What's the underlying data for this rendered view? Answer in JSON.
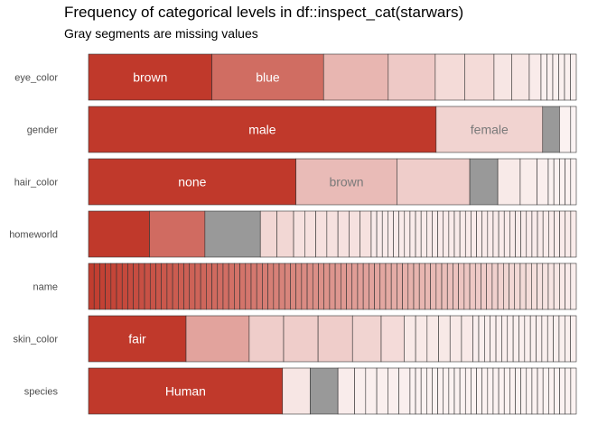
{
  "chart_data": {
    "type": "stacked-bar",
    "title": "Frequency of categorical levels in df::inspect_cat(starwars)",
    "subtitle": "Gray segments are missing values",
    "colors": {
      "level": "#c0392b",
      "missing": "#999999",
      "label_light": "#ffffff",
      "label_dark": "#7a7a7a",
      "border": "#333333",
      "axis_text": "#4d4d4d"
    },
    "rows": [
      {
        "name": "eye_color",
        "segments": [
          {
            "value": 21,
            "label": "brown",
            "na": false
          },
          {
            "value": 19,
            "label": "blue",
            "na": false
          },
          {
            "value": 11,
            "label": "",
            "na": false
          },
          {
            "value": 8,
            "label": "",
            "na": false
          },
          {
            "value": 5,
            "label": "",
            "na": false
          },
          {
            "value": 5,
            "label": "",
            "na": false
          },
          {
            "value": 3,
            "label": "",
            "na": false
          },
          {
            "value": 3,
            "label": "",
            "na": false
          },
          {
            "value": 2,
            "label": "",
            "na": false
          },
          {
            "value": 1,
            "label": "",
            "na": false
          },
          {
            "value": 1,
            "label": "",
            "na": false
          },
          {
            "value": 1,
            "label": "",
            "na": false
          },
          {
            "value": 1,
            "label": "",
            "na": false
          },
          {
            "value": 1,
            "label": "",
            "na": false
          },
          {
            "value": 1,
            "label": "",
            "na": false
          }
        ]
      },
      {
        "name": "gender",
        "segments": [
          {
            "value": 62,
            "label": "male",
            "na": false
          },
          {
            "value": 19,
            "label": "female",
            "na": false
          },
          {
            "value": 3,
            "label": "",
            "na": true
          },
          {
            "value": 2,
            "label": "",
            "na": false
          },
          {
            "value": 1,
            "label": "",
            "na": false
          }
        ]
      },
      {
        "name": "hair_color",
        "segments": [
          {
            "value": 37,
            "label": "none",
            "na": false
          },
          {
            "value": 18,
            "label": "brown",
            "na": false
          },
          {
            "value": 13,
            "label": "",
            "na": false
          },
          {
            "value": 5,
            "label": "",
            "na": true
          },
          {
            "value": 4,
            "label": "",
            "na": false
          },
          {
            "value": 3,
            "label": "",
            "na": false
          },
          {
            "value": 2,
            "label": "",
            "na": false
          },
          {
            "value": 1,
            "label": "",
            "na": false
          },
          {
            "value": 1,
            "label": "",
            "na": false
          },
          {
            "value": 1,
            "label": "",
            "na": false
          },
          {
            "value": 1,
            "label": "",
            "na": false
          },
          {
            "value": 1,
            "label": "",
            "na": false
          }
        ]
      },
      {
        "name": "homeworld",
        "segments": [
          {
            "value": 11,
            "label": "",
            "na": false
          },
          {
            "value": 10,
            "label": "",
            "na": false
          },
          {
            "value": 10,
            "label": "",
            "na": true
          },
          {
            "value": 3,
            "label": "",
            "na": false
          },
          {
            "value": 3,
            "label": "",
            "na": false
          },
          {
            "value": 2,
            "label": "",
            "na": false
          },
          {
            "value": 2,
            "label": "",
            "na": false
          },
          {
            "value": 2,
            "label": "",
            "na": false
          },
          {
            "value": 2,
            "label": "",
            "na": false
          },
          {
            "value": 2,
            "label": "",
            "na": false
          },
          {
            "value": 2,
            "label": "",
            "na": false
          },
          {
            "value": 2,
            "label": "",
            "na": false
          },
          {
            "value": 1,
            "label": "",
            "na": false
          },
          {
            "value": 1,
            "label": "",
            "na": false
          },
          {
            "value": 1,
            "label": "",
            "na": false
          },
          {
            "value": 1,
            "label": "",
            "na": false
          },
          {
            "value": 1,
            "label": "",
            "na": false
          },
          {
            "value": 1,
            "label": "",
            "na": false
          },
          {
            "value": 1,
            "label": "",
            "na": false
          },
          {
            "value": 1,
            "label": "",
            "na": false
          },
          {
            "value": 1,
            "label": "",
            "na": false
          },
          {
            "value": 1,
            "label": "",
            "na": false
          },
          {
            "value": 1,
            "label": "",
            "na": false
          },
          {
            "value": 1,
            "label": "",
            "na": false
          },
          {
            "value": 1,
            "label": "",
            "na": false
          },
          {
            "value": 1,
            "label": "",
            "na": false
          },
          {
            "value": 1,
            "label": "",
            "na": false
          },
          {
            "value": 1,
            "label": "",
            "na": false
          },
          {
            "value": 1,
            "label": "",
            "na": false
          },
          {
            "value": 1,
            "label": "",
            "na": false
          },
          {
            "value": 1,
            "label": "",
            "na": false
          },
          {
            "value": 1,
            "label": "",
            "na": false
          },
          {
            "value": 1,
            "label": "",
            "na": false
          },
          {
            "value": 1,
            "label": "",
            "na": false
          },
          {
            "value": 1,
            "label": "",
            "na": false
          },
          {
            "value": 1,
            "label": "",
            "na": false
          },
          {
            "value": 1,
            "label": "",
            "na": false
          },
          {
            "value": 1,
            "label": "",
            "na": false
          },
          {
            "value": 1,
            "label": "",
            "na": false
          },
          {
            "value": 1,
            "label": "",
            "na": false
          },
          {
            "value": 1,
            "label": "",
            "na": false
          },
          {
            "value": 1,
            "label": "",
            "na": false
          },
          {
            "value": 1,
            "label": "",
            "na": false
          },
          {
            "value": 1,
            "label": "",
            "na": false
          },
          {
            "value": 1,
            "label": "",
            "na": false
          },
          {
            "value": 1,
            "label": "",
            "na": false
          },
          {
            "value": 1,
            "label": "",
            "na": false
          },
          {
            "value": 1,
            "label": "",
            "na": false
          },
          {
            "value": 1,
            "label": "",
            "na": false
          }
        ]
      },
      {
        "name": "name",
        "uniform_count": 87
      },
      {
        "name": "skin_color",
        "segments": [
          {
            "value": 17,
            "label": "fair",
            "na": false
          },
          {
            "value": 11,
            "label": "",
            "na": false
          },
          {
            "value": 6,
            "label": "",
            "na": false
          },
          {
            "value": 6,
            "label": "",
            "na": false
          },
          {
            "value": 6,
            "label": "",
            "na": false
          },
          {
            "value": 5,
            "label": "",
            "na": false
          },
          {
            "value": 4,
            "label": "",
            "na": false
          },
          {
            "value": 2,
            "label": "",
            "na": false
          },
          {
            "value": 2,
            "label": "",
            "na": false
          },
          {
            "value": 2,
            "label": "",
            "na": false
          },
          {
            "value": 2,
            "label": "",
            "na": false
          },
          {
            "value": 2,
            "label": "",
            "na": false
          },
          {
            "value": 2,
            "label": "",
            "na": false
          },
          {
            "value": 1,
            "label": "",
            "na": false
          },
          {
            "value": 1,
            "label": "",
            "na": false
          },
          {
            "value": 1,
            "label": "",
            "na": false
          },
          {
            "value": 1,
            "label": "",
            "na": false
          },
          {
            "value": 1,
            "label": "",
            "na": false
          },
          {
            "value": 1,
            "label": "",
            "na": false
          },
          {
            "value": 1,
            "label": "",
            "na": false
          },
          {
            "value": 1,
            "label": "",
            "na": false
          },
          {
            "value": 1,
            "label": "",
            "na": false
          },
          {
            "value": 1,
            "label": "",
            "na": false
          },
          {
            "value": 1,
            "label": "",
            "na": false
          },
          {
            "value": 1,
            "label": "",
            "na": false
          },
          {
            "value": 1,
            "label": "",
            "na": false
          },
          {
            "value": 1,
            "label": "",
            "na": false
          },
          {
            "value": 1,
            "label": "",
            "na": false
          },
          {
            "value": 1,
            "label": "",
            "na": false
          },
          {
            "value": 1,
            "label": "",
            "na": false
          },
          {
            "value": 1,
            "label": "",
            "na": false
          }
        ]
      },
      {
        "name": "species",
        "segments": [
          {
            "value": 35,
            "label": "Human",
            "na": false
          },
          {
            "value": 5,
            "label": "",
            "na": false
          },
          {
            "value": 5,
            "label": "",
            "na": true
          },
          {
            "value": 3,
            "label": "",
            "na": false
          },
          {
            "value": 2,
            "label": "",
            "na": false
          },
          {
            "value": 2,
            "label": "",
            "na": false
          },
          {
            "value": 2,
            "label": "",
            "na": false
          },
          {
            "value": 2,
            "label": "",
            "na": false
          },
          {
            "value": 2,
            "label": "",
            "na": false
          },
          {
            "value": 1,
            "label": "",
            "na": false
          },
          {
            "value": 1,
            "label": "",
            "na": false
          },
          {
            "value": 1,
            "label": "",
            "na": false
          },
          {
            "value": 1,
            "label": "",
            "na": false
          },
          {
            "value": 1,
            "label": "",
            "na": false
          },
          {
            "value": 1,
            "label": "",
            "na": false
          },
          {
            "value": 1,
            "label": "",
            "na": false
          },
          {
            "value": 1,
            "label": "",
            "na": false
          },
          {
            "value": 1,
            "label": "",
            "na": false
          },
          {
            "value": 1,
            "label": "",
            "na": false
          },
          {
            "value": 1,
            "label": "",
            "na": false
          },
          {
            "value": 1,
            "label": "",
            "na": false
          },
          {
            "value": 1,
            "label": "",
            "na": false
          },
          {
            "value": 1,
            "label": "",
            "na": false
          },
          {
            "value": 1,
            "label": "",
            "na": false
          },
          {
            "value": 1,
            "label": "",
            "na": false
          },
          {
            "value": 1,
            "label": "",
            "na": false
          },
          {
            "value": 1,
            "label": "",
            "na": false
          },
          {
            "value": 1,
            "label": "",
            "na": false
          },
          {
            "value": 1,
            "label": "",
            "na": false
          },
          {
            "value": 1,
            "label": "",
            "na": false
          },
          {
            "value": 1,
            "label": "",
            "na": false
          },
          {
            "value": 1,
            "label": "",
            "na": false
          },
          {
            "value": 1,
            "label": "",
            "na": false
          },
          {
            "value": 1,
            "label": "",
            "na": false
          },
          {
            "value": 1,
            "label": "",
            "na": false
          },
          {
            "value": 1,
            "label": "",
            "na": false
          },
          {
            "value": 1,
            "label": "",
            "na": false
          },
          {
            "value": 1,
            "label": "",
            "na": false
          },
          {
            "value": 1,
            "label": "",
            "na": false
          }
        ]
      }
    ]
  }
}
